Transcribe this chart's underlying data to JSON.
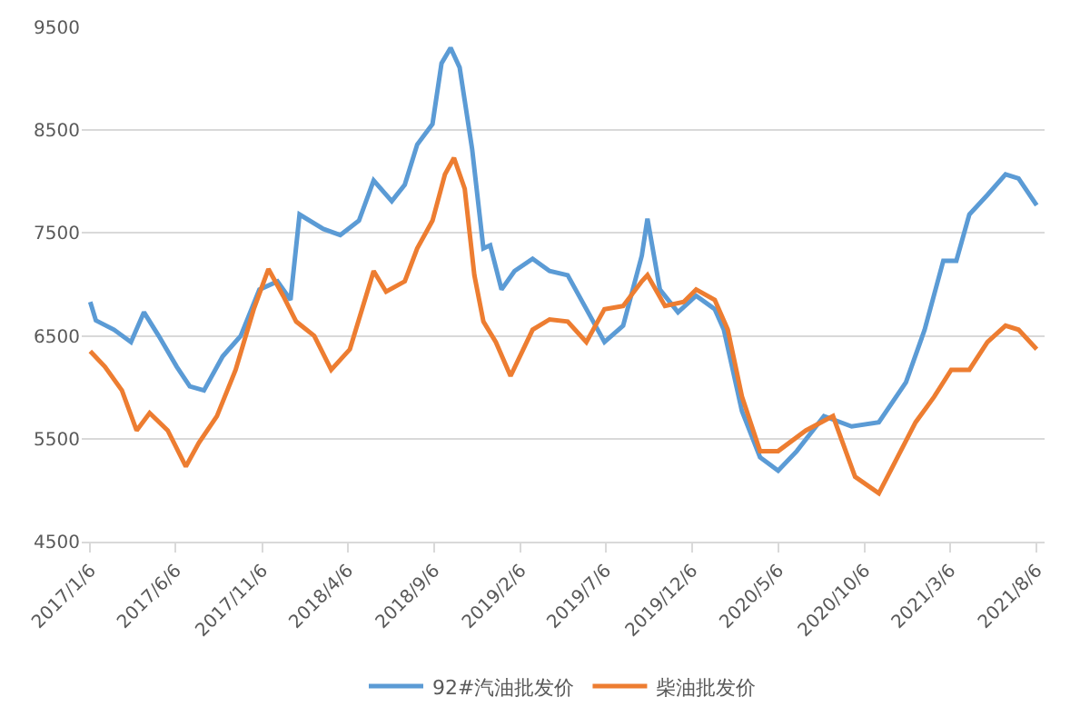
{
  "chart_data": {
    "type": "line",
    "xlim": [
      "2016-12-22",
      "2021-08-20"
    ],
    "ylim": [
      4500,
      9500
    ],
    "yticks": [
      4500,
      5500,
      6500,
      7500,
      8500,
      9500
    ],
    "xticks": [
      {
        "value": "2017-01-06",
        "label": "2017/1/6"
      },
      {
        "value": "2017-06-06",
        "label": "2017/6/6"
      },
      {
        "value": "2017-11-06",
        "label": "2017/11/6"
      },
      {
        "value": "2018-04-06",
        "label": "2018/4/6"
      },
      {
        "value": "2018-09-06",
        "label": "2018/9/6"
      },
      {
        "value": "2019-02-06",
        "label": "2019/2/6"
      },
      {
        "value": "2019-07-06",
        "label": "2019/7/6"
      },
      {
        "value": "2019-12-06",
        "label": "2019/12/6"
      },
      {
        "value": "2020-05-06",
        "label": "2020/5/6"
      },
      {
        "value": "2020-10-06",
        "label": "2020/10/6"
      },
      {
        "value": "2021-03-06",
        "label": "2021/3/6"
      },
      {
        "value": "2021-08-06",
        "label": "2021/8/6"
      }
    ],
    "grid": "y",
    "legend": "bottom",
    "marker": "none",
    "line_style": "solid",
    "series": [
      {
        "name": "92#汽油批发价",
        "color": "#5b9bd5",
        "x": [
          "2017-01-06",
          "2017-01-16",
          "2017-02-17",
          "2017-03-19",
          "2017-04-11",
          "2017-05-07",
          "2017-06-08",
          "2017-07-01",
          "2017-07-26",
          "2017-08-28",
          "2017-09-29",
          "2017-11-01",
          "2017-12-03",
          "2017-12-26",
          "2018-01-11",
          "2018-02-22",
          "2018-03-24",
          "2018-04-26",
          "2018-05-22",
          "2018-06-23",
          "2018-07-16",
          "2018-08-07",
          "2018-09-03",
          "2018-09-19",
          "2018-10-05",
          "2018-10-21",
          "2018-11-12",
          "2018-12-02",
          "2018-12-14",
          "2019-01-03",
          "2019-01-26",
          "2019-02-27",
          "2019-03-29",
          "2019-04-30",
          "2019-06-02",
          "2019-07-04",
          "2019-08-06",
          "2019-09-08",
          "2019-09-18",
          "2019-10-10",
          "2019-11-11",
          "2019-12-13",
          "2020-01-15",
          "2020-01-31",
          "2020-03-03",
          "2020-04-04",
          "2020-05-06",
          "2020-06-08",
          "2020-07-26",
          "2020-09-13",
          "2020-10-31",
          "2020-12-18",
          "2021-01-20",
          "2021-02-22",
          "2021-03-17",
          "2021-04-09",
          "2021-05-11",
          "2021-06-12",
          "2021-07-05",
          "2021-08-06"
        ],
        "values": [
          6830,
          6650,
          6560,
          6440,
          6730,
          6500,
          6200,
          6010,
          5970,
          6300,
          6500,
          6950,
          7030,
          6850,
          7680,
          7540,
          7480,
          7620,
          8010,
          7810,
          7970,
          8360,
          8560,
          9150,
          9300,
          9110,
          8320,
          7350,
          7380,
          6950,
          7130,
          7250,
          7130,
          7090,
          6760,
          6440,
          6600,
          7280,
          7640,
          6950,
          6730,
          6890,
          6760,
          6560,
          5770,
          5320,
          5190,
          5380,
          5720,
          5620,
          5660,
          6050,
          6560,
          7230,
          7230,
          7680,
          7870,
          8070,
          8030,
          7770
        ]
      },
      {
        "name": "柴油批发价",
        "color": "#ed7d31",
        "x": [
          "2017-01-06",
          "2017-02-01",
          "2017-03-03",
          "2017-03-29",
          "2017-04-21",
          "2017-05-23",
          "2017-06-24",
          "2017-07-17",
          "2017-08-18",
          "2017-09-20",
          "2017-10-22",
          "2017-11-17",
          "2017-12-13",
          "2018-01-05",
          "2018-02-06",
          "2018-03-08",
          "2018-04-10",
          "2018-05-22",
          "2018-06-13",
          "2018-07-16",
          "2018-08-07",
          "2018-09-03",
          "2018-09-25",
          "2018-10-11",
          "2018-10-30",
          "2018-11-16",
          "2018-12-02",
          "2018-12-24",
          "2019-01-19",
          "2019-02-27",
          "2019-03-29",
          "2019-04-30",
          "2019-06-02",
          "2019-07-04",
          "2019-08-06",
          "2019-09-08",
          "2019-09-18",
          "2019-10-19",
          "2019-11-21",
          "2019-12-13",
          "2020-01-15",
          "2020-02-07",
          "2020-03-03",
          "2020-04-04",
          "2020-05-06",
          "2020-06-24",
          "2020-08-11",
          "2020-09-19",
          "2020-10-31",
          "2020-12-03",
          "2021-01-04",
          "2021-02-06",
          "2021-03-08",
          "2021-04-09",
          "2021-05-11",
          "2021-06-12",
          "2021-07-05",
          "2021-08-06"
        ],
        "values": [
          6350,
          6200,
          5970,
          5580,
          5750,
          5580,
          5230,
          5460,
          5720,
          6170,
          6760,
          7150,
          6890,
          6640,
          6500,
          6170,
          6370,
          7130,
          6930,
          7030,
          7350,
          7620,
          8070,
          8230,
          7930,
          7090,
          6640,
          6440,
          6110,
          6560,
          6660,
          6640,
          6440,
          6760,
          6790,
          7030,
          7090,
          6790,
          6830,
          6950,
          6850,
          6560,
          5910,
          5380,
          5380,
          5580,
          5720,
          5130,
          4970,
          5320,
          5660,
          5910,
          6170,
          6170,
          6440,
          6600,
          6560,
          6370
        ]
      }
    ]
  }
}
